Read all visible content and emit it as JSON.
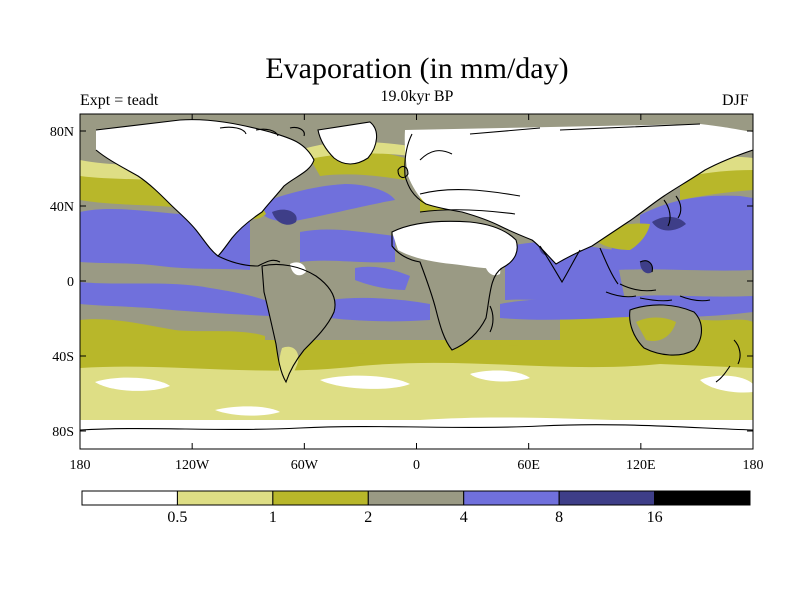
{
  "title": "Evaporation (in mm/day)",
  "left_label": "Expt = teadt",
  "center_label": "19.0kyr BP",
  "right_label": "DJF",
  "colors": {
    "level0": "#ffffff",
    "level1": "#dede85",
    "level2": "#b8b72a",
    "level3": "#9a9a84",
    "level4": "#7070dc",
    "level5": "#3e3e88",
    "level6": "#000000",
    "coast": "#000000"
  },
  "map": {
    "lon_ticks": [
      "180",
      "120W",
      "60W",
      "0",
      "60E",
      "120E",
      "180"
    ],
    "lat_ticks": [
      "80N",
      "40N",
      "0",
      "40S",
      "80S"
    ]
  },
  "colorbar": {
    "labels": [
      "0.5",
      "1",
      "2",
      "4",
      "8",
      "16"
    ],
    "bins": 7
  }
}
